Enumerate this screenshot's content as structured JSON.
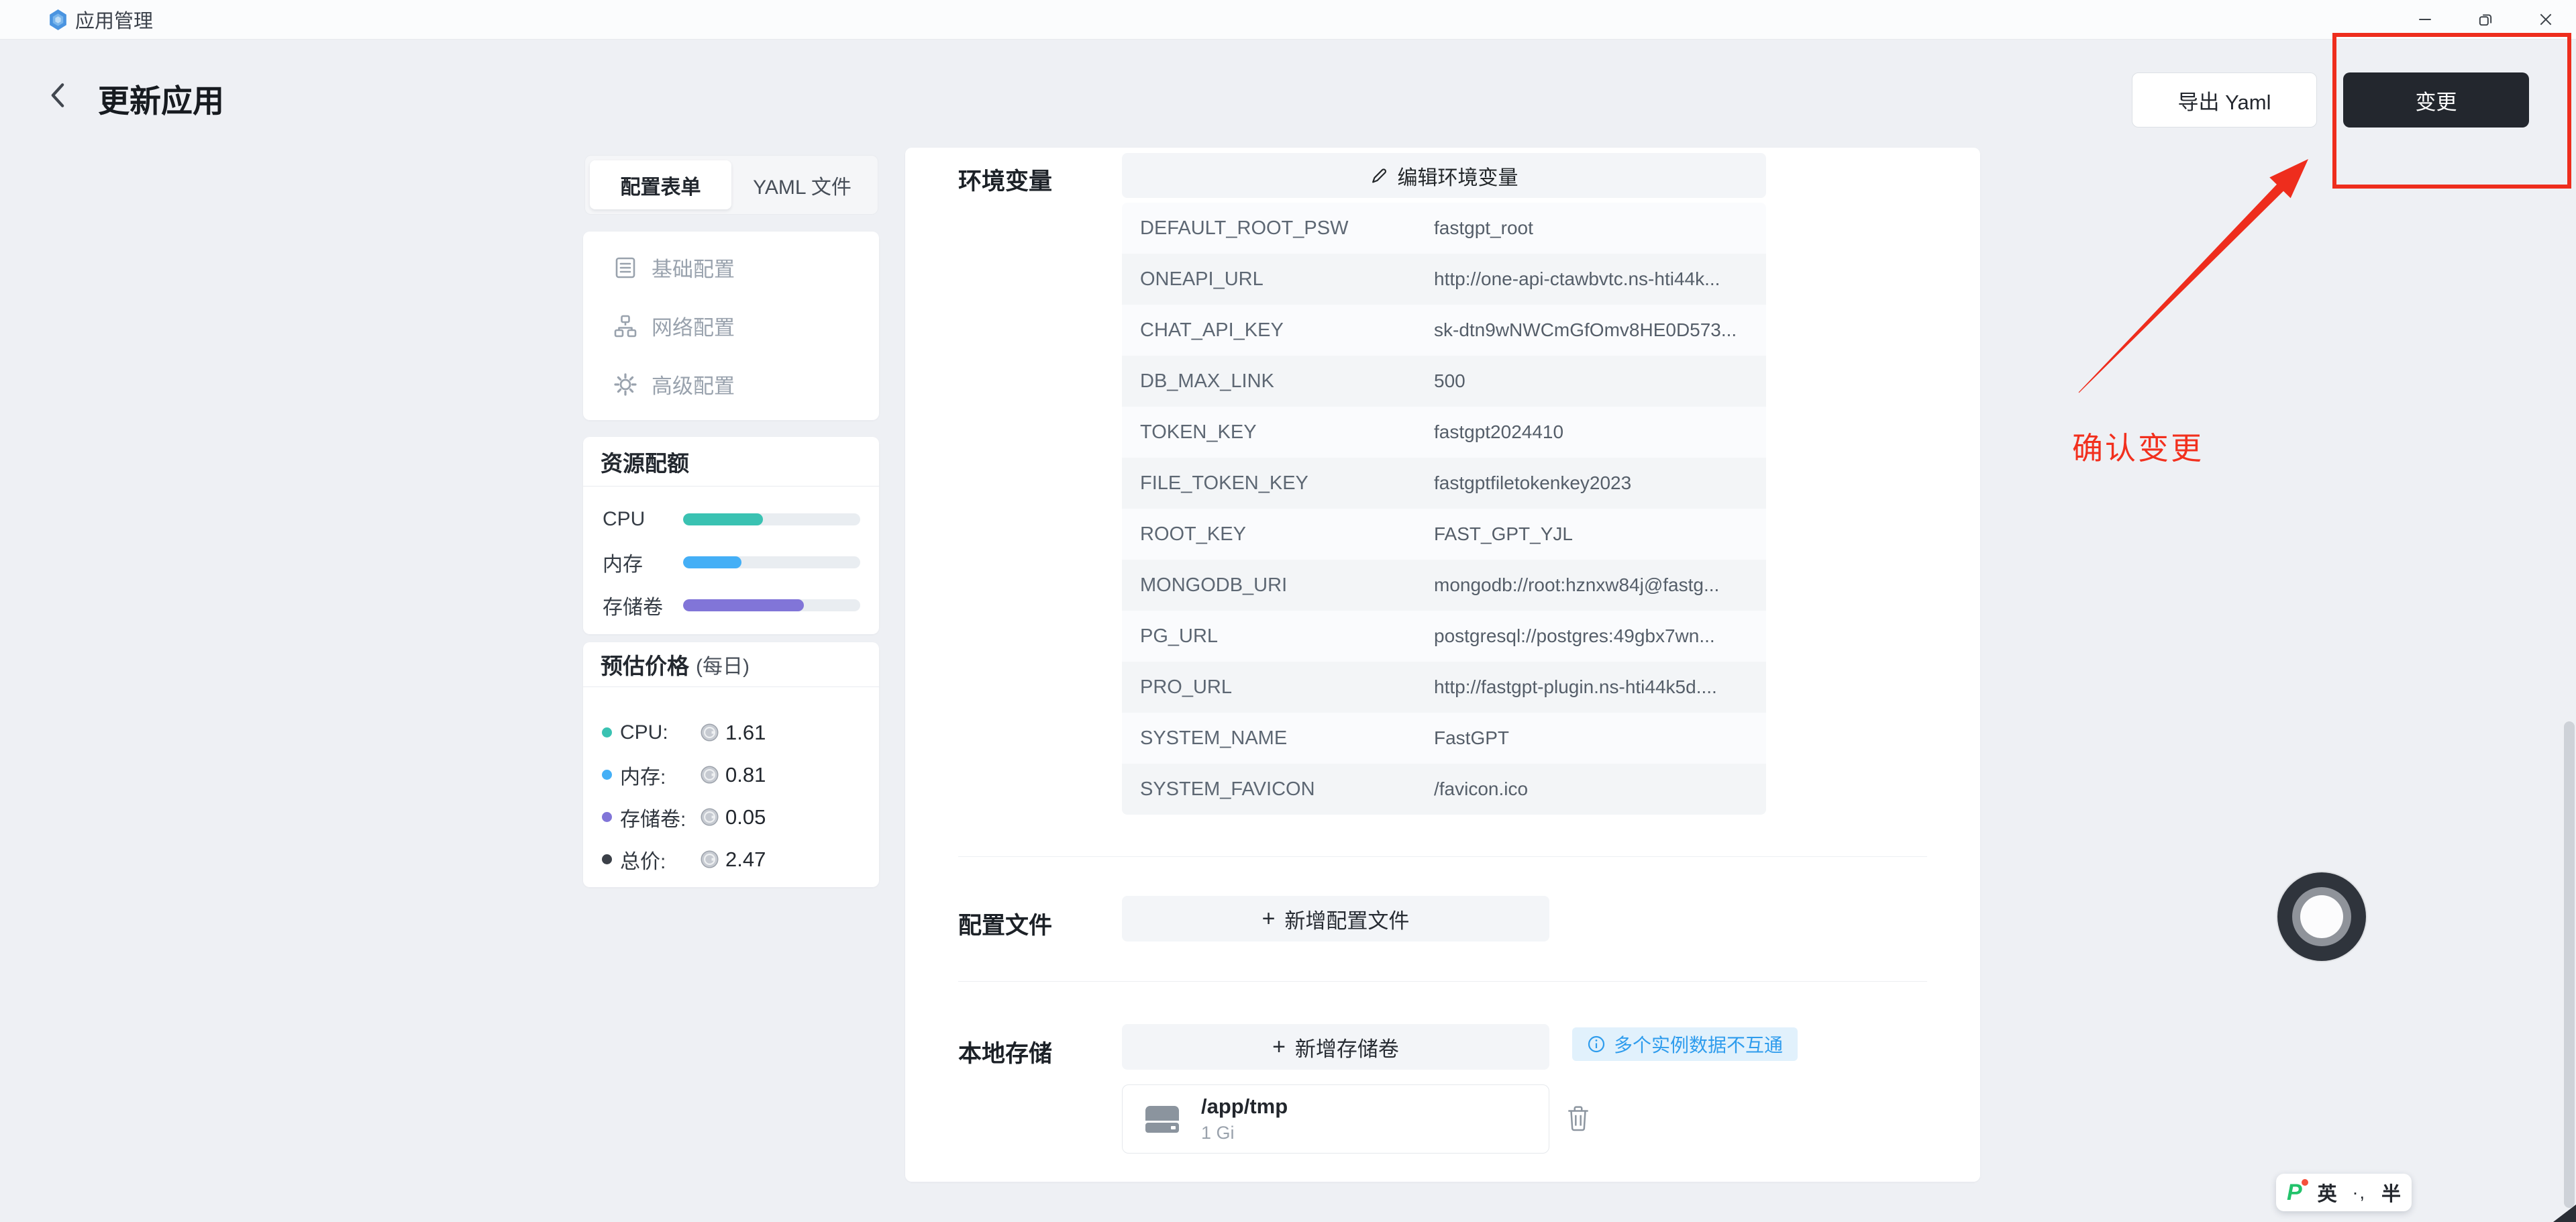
{
  "window": {
    "title": "应用管理"
  },
  "header": {
    "title": "更新应用",
    "export_button": "导出 Yaml",
    "apply_button": "变更"
  },
  "annotation": {
    "label": "确认变更",
    "color": "#f2301e"
  },
  "sidebar": {
    "tabs": {
      "form": "配置表单",
      "yaml": "YAML 文件"
    },
    "nav": [
      {
        "label": "基础配置"
      },
      {
        "label": "网络配置"
      },
      {
        "label": "高级配置"
      }
    ],
    "quota": {
      "title": "资源配额",
      "rows": [
        {
          "label": "CPU",
          "percent": 45,
          "color": "#3ac2b2"
        },
        {
          "label": "内存",
          "percent": 33,
          "color": "#44aff6"
        },
        {
          "label": "存储卷",
          "percent": 68,
          "color": "#8175d8"
        }
      ]
    },
    "price": {
      "title": "预估价格",
      "subtitle": "(每日)",
      "rows": [
        {
          "label": "CPU:",
          "value": "1.61",
          "color": "#3ac2b2"
        },
        {
          "label": "内存:",
          "value": "0.81",
          "color": "#44aff6"
        },
        {
          "label": "存储卷:",
          "value": "0.05",
          "color": "#8175d8"
        },
        {
          "label": "总价:",
          "value": "2.47",
          "color": "#3b4048"
        }
      ]
    }
  },
  "main": {
    "env": {
      "label": "环境变量",
      "edit_button": "编辑环境变量",
      "rows": [
        {
          "key": "DEFAULT_ROOT_PSW",
          "value": "fastgpt_root"
        },
        {
          "key": "ONEAPI_URL",
          "value": "http://one-api-ctawbvtc.ns-hti44k..."
        },
        {
          "key": "CHAT_API_KEY",
          "value": "sk-dtn9wNWCmGfOmv8HE0D573..."
        },
        {
          "key": "DB_MAX_LINK",
          "value": "500"
        },
        {
          "key": "TOKEN_KEY",
          "value": "fastgpt2024410"
        },
        {
          "key": "FILE_TOKEN_KEY",
          "value": "fastgptfiletokenkey2023"
        },
        {
          "key": "ROOT_KEY",
          "value": "FAST_GPT_YJL"
        },
        {
          "key": "MONGODB_URI",
          "value": "mongodb://root:hznxw84j@fastg..."
        },
        {
          "key": "PG_URL",
          "value": "postgresql://postgres:49gbx7wn..."
        },
        {
          "key": "PRO_URL",
          "value": "http://fastgpt-plugin.ns-hti44k5d...."
        },
        {
          "key": "SYSTEM_NAME",
          "value": "FastGPT"
        },
        {
          "key": "SYSTEM_FAVICON",
          "value": "/favicon.ico"
        }
      ]
    },
    "config_file": {
      "label": "配置文件",
      "plus": "+",
      "add_button": "新增配置文件"
    },
    "storage": {
      "label": "本地存储",
      "plus": "+",
      "add_button": "新增存储卷",
      "hint": "多个实例数据不互通",
      "volume": {
        "path": "/app/tmp",
        "size": "1 Gi"
      }
    }
  },
  "ime": {
    "logo": "P",
    "lang": "英",
    "punctuation": "·,",
    "width_mode": "半"
  }
}
